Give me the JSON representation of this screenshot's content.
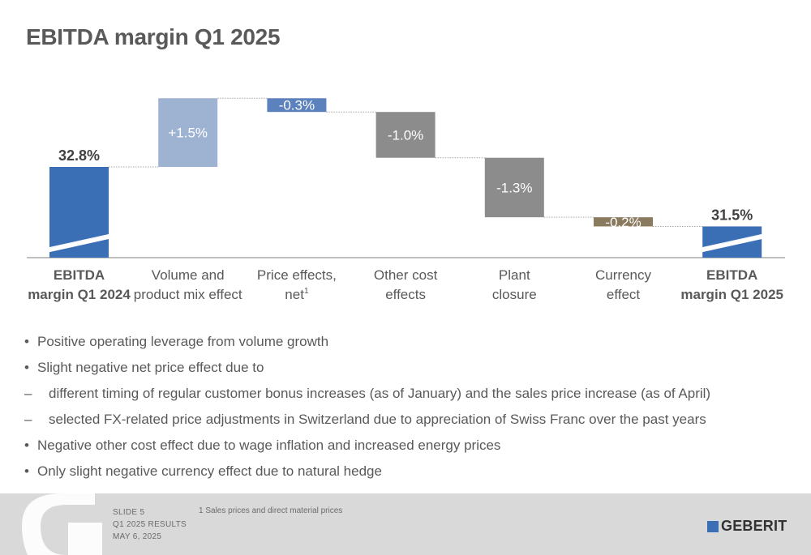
{
  "slide": {
    "title": "EBITDA margin Q1 2025"
  },
  "chart_data": {
    "type": "waterfall",
    "title": "EBITDA margin Q1 2025",
    "unit": "%",
    "bars": [
      {
        "categories": [
          "EBITDA",
          "margin Q1 2024"
        ],
        "kind": "total",
        "value": 32.8,
        "label": "32.8%",
        "color": "#3a6fb6"
      },
      {
        "categories": [
          "Volume and",
          "product mix effect"
        ],
        "kind": "delta",
        "value": 1.5,
        "label": "+1.5%",
        "color": "#9eb2d2"
      },
      {
        "categories": [
          "Price effects,",
          "net"
        ],
        "footnote_mark": "1",
        "kind": "delta",
        "value": -0.3,
        "label": "-0.3%",
        "color": "#5b82bd"
      },
      {
        "categories": [
          "Other cost",
          "effects"
        ],
        "kind": "delta",
        "value": -1.0,
        "label": "-1.0%",
        "color": "#8c8c8c"
      },
      {
        "categories": [
          "Plant",
          "closure"
        ],
        "kind": "delta",
        "value": -1.3,
        "label": "-1.3%",
        "color": "#8c8c8c"
      },
      {
        "categories": [
          "Currency",
          "effect"
        ],
        "kind": "delta",
        "value": -0.2,
        "label": "-0.2%",
        "color": "#8a7a5e"
      },
      {
        "categories": [
          "EBITDA",
          "margin Q1 2025"
        ],
        "kind": "total",
        "value": 31.5,
        "label": "31.5%",
        "color": "#3a6fb6"
      }
    ],
    "axis_break": true,
    "grid": false,
    "legend": "none"
  },
  "bullets": [
    {
      "level": 1,
      "marker": "•",
      "text": "Positive operating leverage from volume growth"
    },
    {
      "level": 1,
      "marker": "•",
      "text": "Slight negative net price effect due to"
    },
    {
      "level": 2,
      "marker": "–",
      "text": "different timing of regular customer bonus increases (as of January) and the sales price increase (as of April)"
    },
    {
      "level": 2,
      "marker": "–",
      "text": "selected FX-related price adjustments in Switzerland due to appreciation of Swiss Franc over the past years"
    },
    {
      "level": 1,
      "marker": "•",
      "text": "Negative other cost effect due to wage inflation and increased energy prices"
    },
    {
      "level": 1,
      "marker": "•",
      "text": "Only slight negative currency effect due to natural hedge"
    }
  ],
  "footer": {
    "slide_number": "SLIDE 5",
    "report": "Q1 2025 RESULTS",
    "date": "MAY 6, 2025",
    "footnote": "1 Sales prices and direct material prices",
    "brand": "GEBERIT",
    "brand_color": "#3a6fb6",
    "background_color": "#d9d9d9"
  }
}
